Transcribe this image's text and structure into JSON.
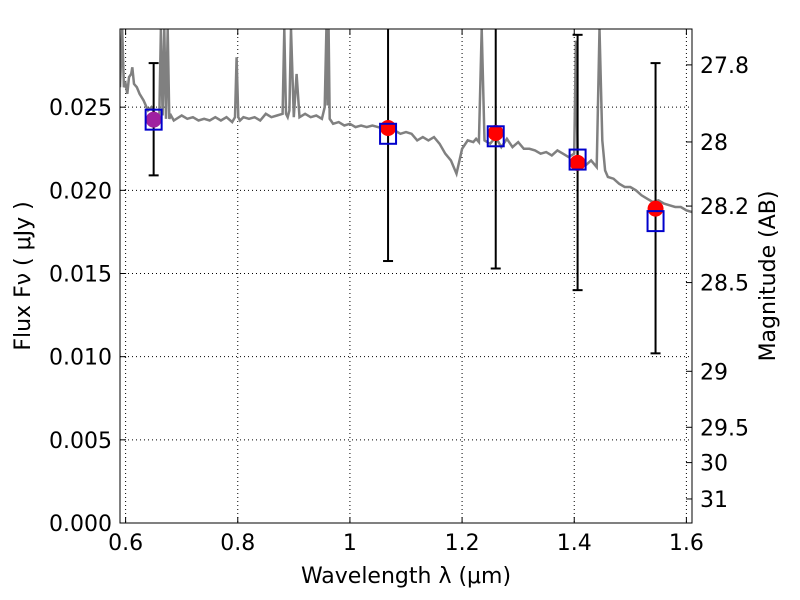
{
  "chart_data": {
    "type": "scatter",
    "xlabel": "Wavelength  λ (μm)",
    "ylabel": "Flux  Fν ( μJy )",
    "ylabel_right": "Magnitude (AB)",
    "xlim": [
      0.59,
      1.61
    ],
    "ylim": [
      0.0,
      0.0297
    ],
    "x_ticks": [
      {
        "v": 0.6,
        "label": "0.6"
      },
      {
        "v": 0.8,
        "label": "0.8"
      },
      {
        "v": 1.0,
        "label": "1"
      },
      {
        "v": 1.2,
        "label": "1.2"
      },
      {
        "v": 1.4,
        "label": "1.4"
      },
      {
        "v": 1.6,
        "label": "1.6"
      }
    ],
    "y_ticks": [
      {
        "v": 0.0,
        "label": "0.000"
      },
      {
        "v": 0.005,
        "label": "0.005"
      },
      {
        "v": 0.01,
        "label": "0.010"
      },
      {
        "v": 0.015,
        "label": "0.015"
      },
      {
        "v": 0.02,
        "label": "0.020"
      },
      {
        "v": 0.025,
        "label": "0.025"
      }
    ],
    "mag_ticks": [
      "27.8",
      "28",
      "28.2",
      "28.5",
      "29",
      "29.5",
      "30",
      "31"
    ],
    "grid": true,
    "colors": {
      "spectrum": "#808080",
      "model": "#0000cc",
      "observed": "#ff0000",
      "overlap": "#a020a0",
      "errorbar": "#000000"
    },
    "spectrum": {
      "x": [
        0.59,
        0.594,
        0.597,
        0.6,
        0.603,
        0.606,
        0.61,
        0.612,
        0.615,
        0.62,
        0.625,
        0.632,
        0.64,
        0.646,
        0.652,
        0.66,
        0.663,
        0.666,
        0.669,
        0.672,
        0.675,
        0.678,
        0.681,
        0.686,
        0.7,
        0.71,
        0.72,
        0.73,
        0.74,
        0.75,
        0.76,
        0.77,
        0.78,
        0.79,
        0.795,
        0.798,
        0.801,
        0.804,
        0.81,
        0.82,
        0.83,
        0.84,
        0.85,
        0.86,
        0.87,
        0.88,
        0.883,
        0.886,
        0.889,
        0.892,
        0.895,
        0.9,
        0.905,
        0.91,
        0.92,
        0.93,
        0.94,
        0.95,
        0.955,
        0.958,
        0.96,
        0.962,
        0.964,
        0.966,
        0.97,
        0.98,
        0.99,
        1.0,
        1.01,
        1.02,
        1.03,
        1.04,
        1.05,
        1.06,
        1.07,
        1.08,
        1.09,
        1.1,
        1.11,
        1.12,
        1.13,
        1.14,
        1.15,
        1.16,
        1.17,
        1.18,
        1.19,
        1.2,
        1.21,
        1.22,
        1.225,
        1.23,
        1.235,
        1.24,
        1.25,
        1.26,
        1.27,
        1.28,
        1.29,
        1.3,
        1.31,
        1.32,
        1.33,
        1.34,
        1.35,
        1.36,
        1.37,
        1.38,
        1.39,
        1.4,
        1.403,
        1.406,
        1.409,
        1.412,
        1.42,
        1.43,
        1.44,
        1.445,
        1.45,
        1.455,
        1.46,
        1.47,
        1.48,
        1.49,
        1.5,
        1.51,
        1.52,
        1.53,
        1.54,
        1.55,
        1.56,
        1.57,
        1.58,
        1.59,
        1.6,
        1.61
      ],
      "y": [
        0.0262,
        0.0297,
        0.0262,
        0.0264,
        0.0258,
        0.0268,
        0.027,
        0.0274,
        0.0264,
        0.0262,
        0.0258,
        0.0254,
        0.0248,
        0.025,
        0.0246,
        0.0244,
        0.0297,
        0.0245,
        0.0297,
        0.0243,
        0.0297,
        0.0243,
        0.0245,
        0.0242,
        0.0245,
        0.0243,
        0.0244,
        0.0242,
        0.0243,
        0.0242,
        0.0244,
        0.0242,
        0.0244,
        0.0241,
        0.0244,
        0.028,
        0.0244,
        0.0242,
        0.0244,
        0.0243,
        0.0244,
        0.0242,
        0.0246,
        0.0244,
        0.0245,
        0.0246,
        0.0297,
        0.0246,
        0.0244,
        0.0248,
        0.0297,
        0.0244,
        0.027,
        0.0244,
        0.0246,
        0.0244,
        0.0245,
        0.0243,
        0.025,
        0.0297,
        0.0251,
        0.0297,
        0.0243,
        0.0242,
        0.024,
        0.0241,
        0.0239,
        0.024,
        0.0238,
        0.0239,
        0.0238,
        0.0239,
        0.0238,
        0.0237,
        0.0235,
        0.0236,
        0.0234,
        0.0235,
        0.0234,
        0.023,
        0.0232,
        0.023,
        0.0232,
        0.0228,
        0.0222,
        0.0218,
        0.021,
        0.0225,
        0.023,
        0.0229,
        0.0231,
        0.0229,
        0.0297,
        0.023,
        0.0228,
        0.0232,
        0.0226,
        0.0231,
        0.0226,
        0.0229,
        0.0225,
        0.0225,
        0.0224,
        0.0222,
        0.0223,
        0.0221,
        0.0224,
        0.0222,
        0.022,
        0.0222,
        0.029,
        0.022,
        0.0215,
        0.0217,
        0.0215,
        0.0218,
        0.0214,
        0.0297,
        0.023,
        0.0212,
        0.0208,
        0.0207,
        0.0204,
        0.0202,
        0.0202,
        0.02,
        0.0197,
        0.0195,
        0.0193,
        0.0194,
        0.0192,
        0.0191,
        0.019,
        0.019,
        0.0188,
        0.0187
      ]
    },
    "points": [
      {
        "x": 0.65,
        "flux": 0.02425,
        "model": 0.02425,
        "err_low": 0.0209,
        "err_high": 0.02765,
        "overlap": true
      },
      {
        "x": 1.068,
        "flux": 0.02375,
        "model": 0.0234,
        "err_low": 0.01575,
        "err_high": 0.0298,
        "overlap": false
      },
      {
        "x": 1.26,
        "flux": 0.02345,
        "model": 0.02325,
        "err_low": 0.0153,
        "err_high": 0.0298,
        "overlap": false
      },
      {
        "x": 1.406,
        "flux": 0.02165,
        "model": 0.02185,
        "err_low": 0.014,
        "err_high": 0.02935,
        "overlap": false
      },
      {
        "x": 1.545,
        "flux": 0.0189,
        "model": 0.01815,
        "err_low": 0.0102,
        "err_high": 0.02765,
        "overlap": false
      }
    ]
  }
}
